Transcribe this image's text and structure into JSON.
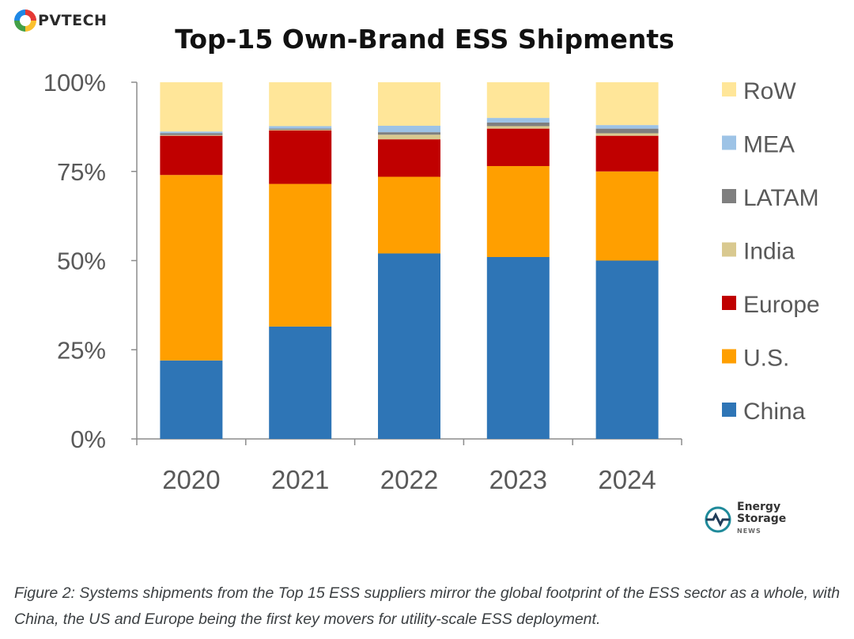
{
  "brand": {
    "logo_text": "PVTECH",
    "ess_logo_line1": "Energy",
    "ess_logo_line2": "Storage",
    "ess_logo_line3": "NEWS"
  },
  "chart_data": {
    "type": "bar",
    "stacked": true,
    "title": "Top-15 Own-Brand ESS Shipments",
    "xlabel": "",
    "ylabel": "",
    "categories": [
      "2020",
      "2021",
      "2022",
      "2023",
      "2024"
    ],
    "y_ticks": [
      "0%",
      "25%",
      "50%",
      "75%",
      "100%"
    ],
    "ylim": [
      0,
      100
    ],
    "grid": false,
    "legend_position": "right",
    "series": [
      {
        "name": "China",
        "color": "#2E75B6",
        "values": [
          22,
          31.5,
          52,
          51,
          50
        ]
      },
      {
        "name": "U.S.",
        "color": "#FF9F00",
        "values": [
          52,
          40,
          21.5,
          25.5,
          25
        ]
      },
      {
        "name": "Europe",
        "color": "#C00000",
        "values": [
          11,
          15,
          10.5,
          10.5,
          10
        ]
      },
      {
        "name": "India",
        "color": "#D9C990",
        "values": [
          0.2,
          0.2,
          1.3,
          0.7,
          0.7
        ]
      },
      {
        "name": "LATAM",
        "color": "#7F7F7F",
        "values": [
          0.5,
          0.3,
          0.7,
          1.0,
          1.3
        ]
      },
      {
        "name": "MEA",
        "color": "#9DC3E6",
        "values": [
          0.5,
          0.7,
          1.8,
          1.3,
          1.0
        ]
      },
      {
        "name": "RoW",
        "color": "#FFE699",
        "values": [
          13.8,
          12.3,
          12.2,
          10.0,
          12.0
        ]
      }
    ]
  },
  "caption": "Figure 2: Systems shipments from the Top 15 ESS suppliers mirror the global footprint of the ESS sector as a whole, with China, the US and Europe being the first key movers for utility-scale ESS deployment."
}
